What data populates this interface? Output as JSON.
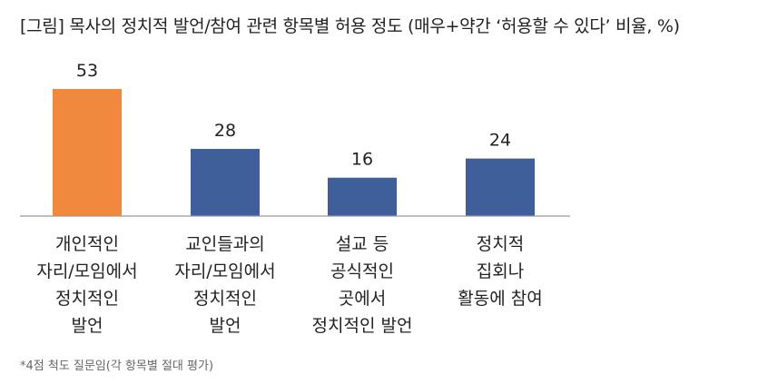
{
  "title": "[그림] 목사의 정치적 발언/참여 관련 항목별 허용 정도 (매우+약간 ‘허용할 수 있다’ 비율, %)",
  "footnote": "*4점 척도 질문임(각 항목별 절대 평가)",
  "colors": {
    "highlight": "#F0883E",
    "bar": "#3F5F9A",
    "axis": "#9a9a9a"
  },
  "chart_data": {
    "type": "bar",
    "title": "[그림] 목사의 정치적 발언/참여 관련 항목별 허용 정도 (매우+약간 ‘허용할 수 있다’ 비율, %)",
    "categories": [
      [
        "개인적인",
        "자리/모임에서",
        "정치적인",
        "발언"
      ],
      [
        "교인들과의",
        "자리/모임에서",
        "정치적인",
        "발언"
      ],
      [
        "설교 등",
        "공식적인",
        "곳에서",
        "정치적인 발언"
      ],
      [
        "정치적",
        "집회나",
        "활동에 참여"
      ]
    ],
    "values": [
      53,
      28,
      16,
      24
    ],
    "value_labels": [
      "53",
      "28",
      "16",
      "24"
    ],
    "highlight_index": 0,
    "ylim": [
      0,
      53
    ],
    "grid": false,
    "legend": "none"
  }
}
